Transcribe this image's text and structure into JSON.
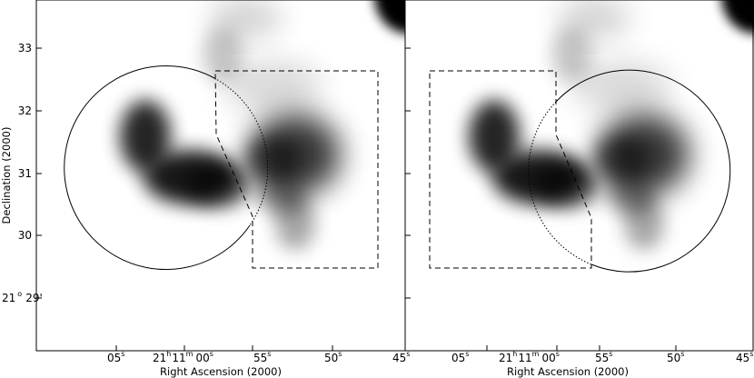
{
  "y_axis": {
    "title": "Declination (2000)",
    "ticks": [
      {
        "value": "33",
        "deg": ""
      },
      {
        "value": "32",
        "deg": ""
      },
      {
        "value": "31",
        "deg": ""
      },
      {
        "value": "30",
        "deg": ""
      },
      {
        "value": "29'",
        "deg": "21",
        "deg_sup": "o"
      }
    ]
  },
  "x_axis": {
    "title": "Right Ascension (2000)",
    "ticks": [
      {
        "sec": "05",
        "sup": "s"
      },
      {
        "h": "21",
        "h_sup": "h",
        "m": "11",
        "m_sup": "m",
        "sec": "00",
        "sup": "s"
      },
      {
        "sec": "55",
        "sup": "s"
      },
      {
        "sec": "50",
        "sup": "s"
      },
      {
        "sec": "45",
        "sup": "s"
      }
    ]
  },
  "panels": [
    {
      "name": "left",
      "circle": "solid-left",
      "region": "dashed-right"
    },
    {
      "name": "right",
      "circle": "solid-right",
      "region": "dashed-left"
    }
  ]
}
